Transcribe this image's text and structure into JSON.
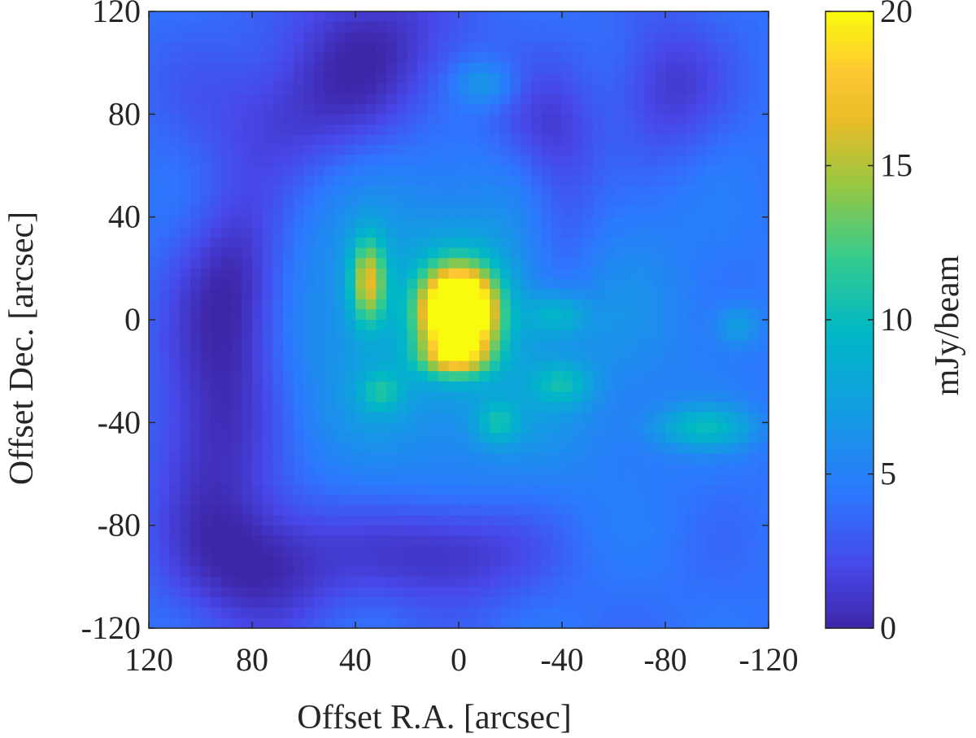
{
  "chart_data": {
    "type": "heatmap",
    "xlabel": "Offset R.A. [arcsec]",
    "ylabel": "Offset Dec. [arcsec]",
    "colorbar_label": "mJy/beam",
    "xlim": [
      120,
      -120
    ],
    "ylim": [
      -120,
      120
    ],
    "clim": [
      0,
      20
    ],
    "colormap": "parula",
    "x_ticks": [
      120,
      80,
      40,
      0,
      -40,
      -80,
      -120
    ],
    "x_tick_labels": [
      "120",
      "80",
      "40",
      "0",
      "-40",
      "-80",
      "-120"
    ],
    "y_ticks": [
      120,
      80,
      40,
      0,
      -40,
      -80,
      -120
    ],
    "y_tick_labels": [
      "120",
      "80",
      "40",
      "0",
      "-40",
      "-80",
      "-120"
    ],
    "colorbar_ticks": [
      0,
      5,
      10,
      15,
      20
    ],
    "colorbar_tick_labels": [
      "0",
      "5",
      "10",
      "15",
      "20"
    ],
    "baseline": 4,
    "features": [
      {
        "x": 0,
        "y": 3,
        "peak": 22,
        "sx": 10,
        "sy": 12
      },
      {
        "x": 2,
        "y": -15,
        "peak": 6,
        "sx": 10,
        "sy": 5
      },
      {
        "x": 35,
        "y": 15,
        "peak": 10,
        "sx": 5,
        "sy": 12
      },
      {
        "x": 30,
        "y": -28,
        "peak": 4,
        "sx": 6,
        "sy": 6
      },
      {
        "x": -15,
        "y": -40,
        "peak": 4,
        "sx": 6,
        "sy": 6
      },
      {
        "x": -38,
        "y": 2,
        "peak": 4,
        "sx": 8,
        "sy": 6
      },
      {
        "x": -40,
        "y": -25,
        "peak": 4,
        "sx": 8,
        "sy": 6
      },
      {
        "x": -95,
        "y": -42,
        "peak": 5,
        "sx": 14,
        "sy": 6
      },
      {
        "x": -108,
        "y": -2,
        "peak": 3,
        "sx": 6,
        "sy": 6
      },
      {
        "x": -10,
        "y": 92,
        "peak": 3,
        "sx": 8,
        "sy": 6
      },
      {
        "x": 0,
        "y": 0,
        "peak": 4,
        "sx": 55,
        "sy": 45
      },
      {
        "x": 85,
        "y": 15,
        "peak": -4,
        "sx": 15,
        "sy": 25
      },
      {
        "x": 95,
        "y": -40,
        "peak": -4,
        "sx": 18,
        "sy": 35
      },
      {
        "x": 75,
        "y": -95,
        "peak": -4,
        "sx": 22,
        "sy": 18
      },
      {
        "x": 5,
        "y": -90,
        "peak": -4,
        "sx": 25,
        "sy": 15
      },
      {
        "x": 30,
        "y": 110,
        "peak": -3,
        "sx": 25,
        "sy": 20
      },
      {
        "x": 60,
        "y": 80,
        "peak": -3,
        "sx": 30,
        "sy": 20
      },
      {
        "x": -40,
        "y": 40,
        "peak": -3,
        "sx": 12,
        "sy": 30
      },
      {
        "x": -80,
        "y": 90,
        "peak": -3,
        "sx": 15,
        "sy": 20
      },
      {
        "x": -30,
        "y": 75,
        "peak": -2,
        "sx": 15,
        "sy": 15
      }
    ]
  }
}
